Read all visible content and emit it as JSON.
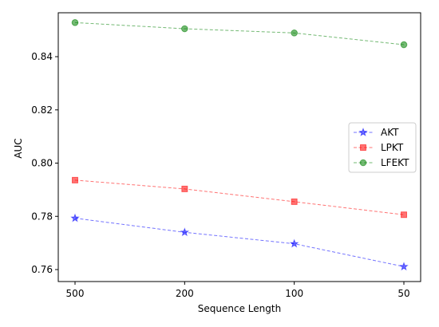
{
  "chart_data": {
    "type": "line",
    "title": "",
    "xlabel": "Sequence Length",
    "ylabel": "AUC",
    "categories": [
      "500",
      "200",
      "100",
      "50"
    ],
    "ylim": [
      0.7555,
      0.8565
    ],
    "yticks": [
      "0.76",
      "0.78",
      "0.80",
      "0.82",
      "0.84"
    ],
    "grid": false,
    "legend_position": "center-right",
    "series": [
      {
        "name": "AKT",
        "values": [
          0.7793,
          0.774,
          0.7697,
          0.7611
        ],
        "color": "#0000ff",
        "marker": "star"
      },
      {
        "name": "LPKT",
        "values": [
          0.7936,
          0.7903,
          0.7855,
          0.7806
        ],
        "color": "#ff0000",
        "marker": "square"
      },
      {
        "name": "LFEKT",
        "values": [
          0.8528,
          0.8505,
          0.8489,
          0.8445
        ],
        "color": "#008000",
        "marker": "circle"
      }
    ]
  }
}
